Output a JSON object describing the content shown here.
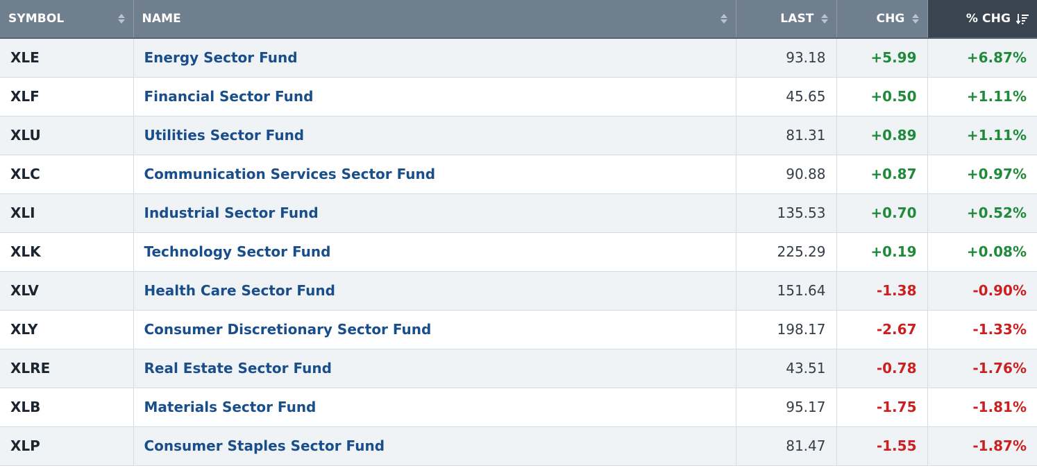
{
  "columns": {
    "symbol": "SYMBOL",
    "name": "NAME",
    "last": "LAST",
    "chg": "CHG",
    "pct_chg": "% CHG"
  },
  "sort": {
    "column": "% CHG",
    "direction": "descending"
  },
  "colors": {
    "header_bg": "#6f7f8e",
    "header_active_bg": "#3a4450",
    "positive": "#1e8a3a",
    "negative": "#cc1f1f",
    "link": "#1a4e8a",
    "row_alt": "#f0f3f6"
  },
  "rows": [
    {
      "symbol": "XLE",
      "name": "Energy Sector Fund",
      "last": "93.18",
      "chg": "+5.99",
      "pct_chg": "+6.87%",
      "direction": "up"
    },
    {
      "symbol": "XLF",
      "name": "Financial Sector Fund",
      "last": "45.65",
      "chg": "+0.50",
      "pct_chg": "+1.11%",
      "direction": "up"
    },
    {
      "symbol": "XLU",
      "name": "Utilities Sector Fund",
      "last": "81.31",
      "chg": "+0.89",
      "pct_chg": "+1.11%",
      "direction": "up"
    },
    {
      "symbol": "XLC",
      "name": "Communication Services Sector Fund",
      "last": "90.88",
      "chg": "+0.87",
      "pct_chg": "+0.97%",
      "direction": "up"
    },
    {
      "symbol": "XLI",
      "name": "Industrial Sector Fund",
      "last": "135.53",
      "chg": "+0.70",
      "pct_chg": "+0.52%",
      "direction": "up"
    },
    {
      "symbol": "XLK",
      "name": "Technology Sector Fund",
      "last": "225.29",
      "chg": "+0.19",
      "pct_chg": "+0.08%",
      "direction": "up"
    },
    {
      "symbol": "XLV",
      "name": "Health Care Sector Fund",
      "last": "151.64",
      "chg": "-1.38",
      "pct_chg": "-0.90%",
      "direction": "down"
    },
    {
      "symbol": "XLY",
      "name": "Consumer Discretionary Sector Fund",
      "last": "198.17",
      "chg": "-2.67",
      "pct_chg": "-1.33%",
      "direction": "down"
    },
    {
      "symbol": "XLRE",
      "name": "Real Estate Sector Fund",
      "last": "43.51",
      "chg": "-0.78",
      "pct_chg": "-1.76%",
      "direction": "down"
    },
    {
      "symbol": "XLB",
      "name": "Materials Sector Fund",
      "last": "95.17",
      "chg": "-1.75",
      "pct_chg": "-1.81%",
      "direction": "down"
    },
    {
      "symbol": "XLP",
      "name": "Consumer Staples Sector Fund",
      "last": "81.47",
      "chg": "-1.55",
      "pct_chg": "-1.87%",
      "direction": "down"
    }
  ]
}
